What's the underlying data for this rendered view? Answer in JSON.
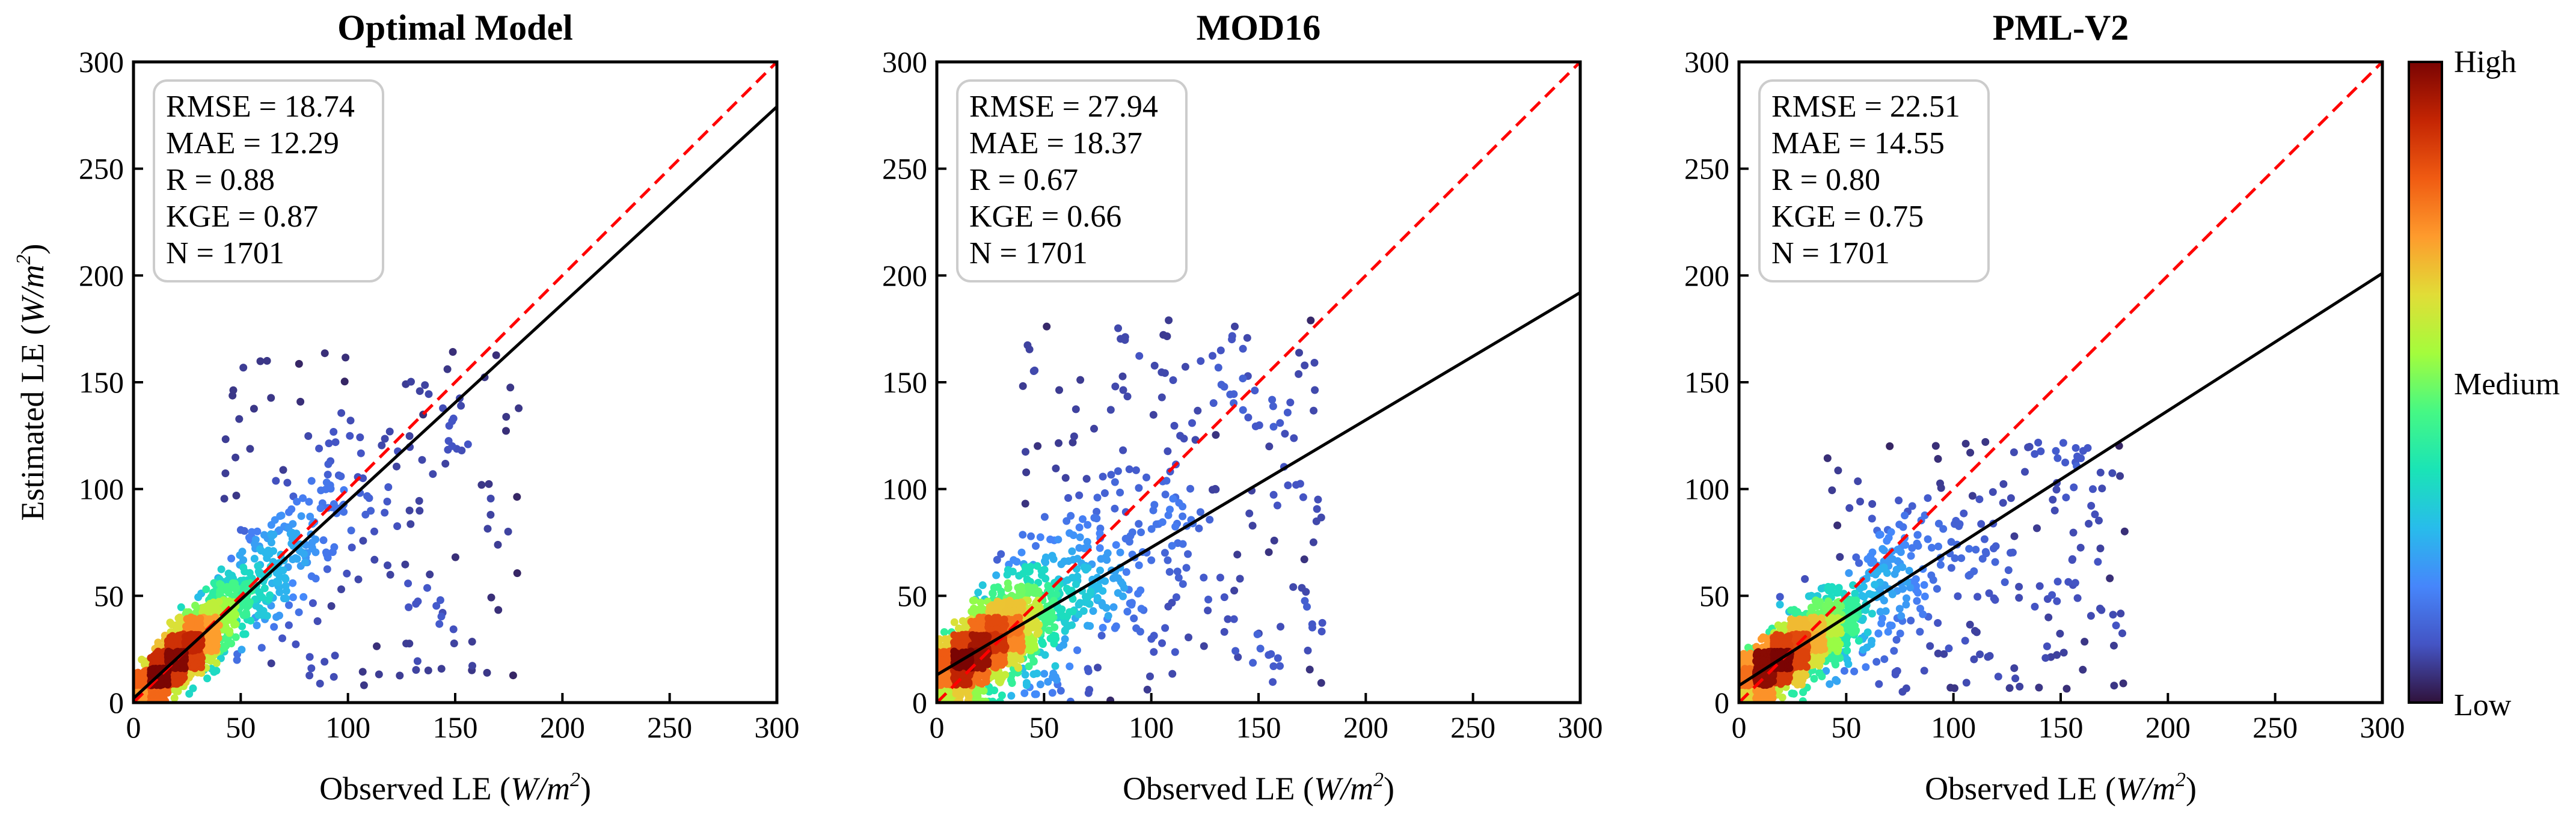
{
  "chart_data": [
    {
      "type": "scatter",
      "title": "Optimal Model",
      "xlabel_prefix": "Observed LE (",
      "xlabel_unit": "W/m",
      "xlabel_sup": "2",
      "xlabel_suffix": ")",
      "ylabel_prefix": "Estimated LE (",
      "ylabel_unit": "W/m",
      "ylabel_sup": "2",
      "ylabel_suffix": ")",
      "xlim": [
        0,
        300
      ],
      "ylim": [
        0,
        300
      ],
      "xticks": [
        0,
        50,
        100,
        150,
        200,
        250,
        300
      ],
      "yticks": [
        0,
        50,
        100,
        150,
        200,
        250,
        300
      ],
      "stats": [
        "RMSE = 18.74",
        "MAE = 12.29",
        "R = 0.88",
        "KGE = 0.87",
        "N = 1701"
      ],
      "one_to_one": [
        [
          0,
          0
        ],
        [
          300,
          300
        ]
      ],
      "fit_line": [
        [
          0,
          2
        ],
        [
          300,
          279
        ]
      ],
      "cloud": {
        "seed": 11,
        "n": 1701,
        "cx": 18,
        "sx": 14,
        "slope": 0.93,
        "intercept": 2,
        "noise": 11,
        "xmax": 180,
        "outlier_frac": 0.09,
        "outlier_ymax": 160
      },
      "point_color_scale": "density"
    },
    {
      "type": "scatter",
      "title": "MOD16",
      "xlabel_prefix": "Observed LE (",
      "xlabel_unit": "W/m",
      "xlabel_sup": "2",
      "xlabel_suffix": ")",
      "xlim": [
        0,
        300
      ],
      "ylim": [
        0,
        300
      ],
      "xticks": [
        0,
        50,
        100,
        150,
        200,
        250,
        300
      ],
      "yticks": [
        0,
        50,
        100,
        150,
        200,
        250,
        300
      ],
      "stats": [
        "RMSE = 27.94",
        "MAE = 18.37",
        "R = 0.67",
        "KGE = 0.66",
        "N = 1701"
      ],
      "one_to_one": [
        [
          0,
          0
        ],
        [
          300,
          300
        ]
      ],
      "fit_line": [
        [
          0,
          13
        ],
        [
          300,
          192
        ]
      ],
      "cloud": {
        "seed": 23,
        "n": 1701,
        "cx": 18,
        "sx": 15,
        "slope": 0.6,
        "intercept": 13,
        "noise": 16,
        "xmax": 180,
        "outlier_frac": 0.14,
        "outlier_ymax": 175
      },
      "point_color_scale": "density"
    },
    {
      "type": "scatter",
      "title": "PML-V2",
      "xlabel_prefix": "Observed LE (",
      "xlabel_unit": "W/m",
      "xlabel_sup": "2",
      "xlabel_suffix": ")",
      "xlim": [
        0,
        300
      ],
      "ylim": [
        0,
        300
      ],
      "xticks": [
        0,
        50,
        100,
        150,
        200,
        250,
        300
      ],
      "yticks": [
        0,
        50,
        100,
        150,
        200,
        250,
        300
      ],
      "stats": [
        "RMSE = 22.51",
        "MAE = 14.55",
        "R = 0.80",
        "KGE = 0.75",
        "N = 1701"
      ],
      "one_to_one": [
        [
          0,
          0
        ],
        [
          300,
          300
        ]
      ],
      "fit_line": [
        [
          0,
          8
        ],
        [
          300,
          201
        ]
      ],
      "cloud": {
        "seed": 37,
        "n": 1701,
        "cx": 18,
        "sx": 14,
        "slope": 0.65,
        "intercept": 8,
        "noise": 12,
        "xmax": 180,
        "outlier_frac": 0.1,
        "outlier_ymax": 120
      },
      "point_color_scale": "density"
    }
  ],
  "colorbar": {
    "labels": [
      "High",
      "Medium",
      "Low"
    ],
    "stops": [
      "#7a0403",
      "#c42503",
      "#f05b12",
      "#fe9b2d",
      "#e1dd37",
      "#a4fc3c",
      "#46f884",
      "#1ae4b6",
      "#28bceb",
      "#4686fb",
      "#4454c4",
      "#30123b"
    ]
  },
  "colors": {
    "one_to_one": "#ff0000",
    "fit_line": "#000000",
    "axes": "#000000",
    "stats_box_border": "#cccccc"
  }
}
